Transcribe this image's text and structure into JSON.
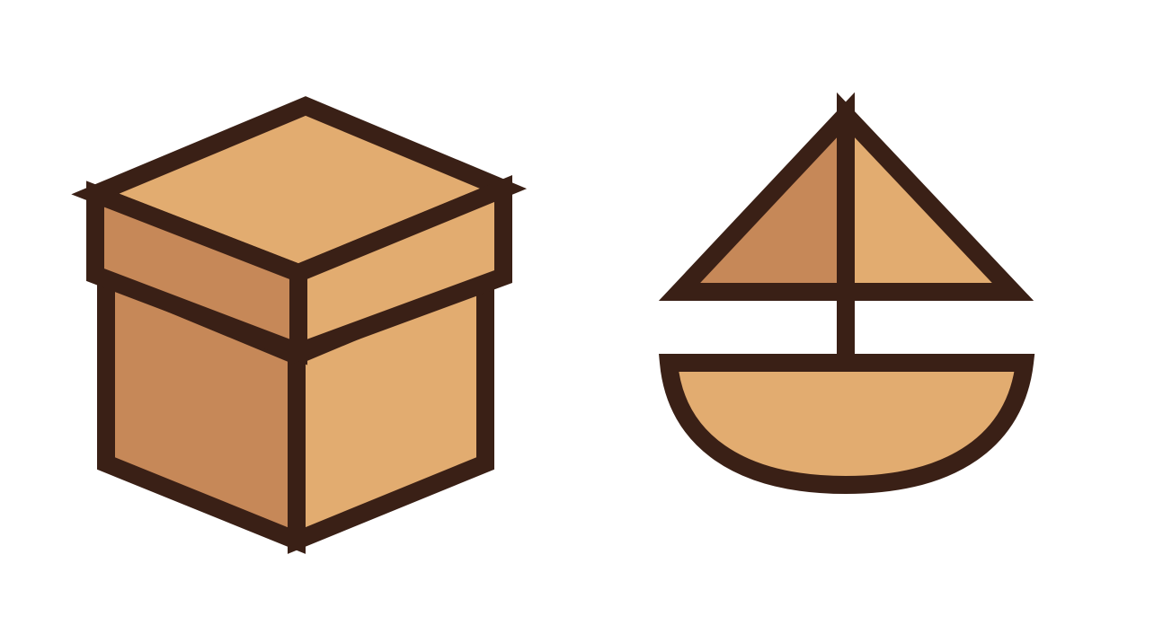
{
  "colors": {
    "background": "#FFFFFF",
    "outline": "#3A2016",
    "light_fill": "#E2AC70",
    "dark_fill": "#C68858"
  },
  "icons": [
    {
      "name": "box-icon"
    },
    {
      "name": "sailboat-icon"
    }
  ]
}
